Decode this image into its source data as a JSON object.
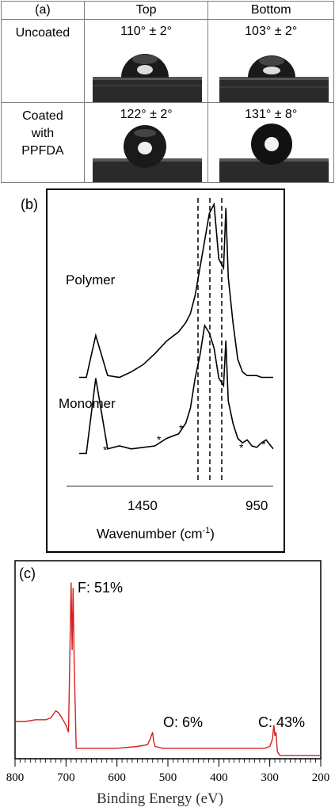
{
  "panel_a": {
    "label": "(a)",
    "col_top": "Top",
    "col_bottom": "Bottom",
    "row1_label": "Uncoated",
    "row2_label_lines": [
      "Coated",
      "with",
      "PPFDA"
    ],
    "uncoated_top": "110° ± 2°",
    "uncoated_bottom": "103° ± 2°",
    "coated_top": "122° ± 2°",
    "coated_bottom": "131° ± 8°"
  },
  "panel_b": {
    "label": "(b)",
    "polymer_label": "Polymer",
    "monomer_label": "Monomer",
    "tick_left": "1450",
    "tick_right": "950",
    "xlabel_main": "Wavenumber (cm",
    "xlabel_sup": "-1",
    "xlabel_end": ")",
    "asterisk": "*"
  },
  "panel_c": {
    "label": "(c)",
    "f_label": "F: 51%",
    "o_label": "O: 6%",
    "c_label": "C: 43%",
    "xlabel": "Binding Energy (eV)",
    "ticks": [
      "800",
      "700",
      "600",
      "500",
      "400",
      "300",
      "200"
    ]
  },
  "chart_data": [
    {
      "type": "line",
      "title": "",
      "xlabel": "Wavenumber (cm-1)",
      "ylabel": "",
      "x_ticks": [
        1450,
        950
      ],
      "series": [
        {
          "name": "Polymer",
          "x": [
            1770,
            1740,
            1700,
            1650,
            1600,
            1550,
            1500,
            1450,
            1400,
            1350,
            1320,
            1300,
            1280,
            1260,
            1240,
            1220,
            1200,
            1180,
            1160,
            1150,
            1140,
            1120,
            1100,
            1080,
            1060,
            1040,
            1020,
            1000,
            980,
            960,
            950
          ],
          "y": [
            0.05,
            0.05,
            0.28,
            0.06,
            0.05,
            0.08,
            0.12,
            0.18,
            0.25,
            0.3,
            0.35,
            0.4,
            0.5,
            0.65,
            0.8,
            0.95,
            1.0,
            0.7,
            0.65,
            0.98,
            0.6,
            0.35,
            0.15,
            0.08,
            0.06,
            0.06,
            0.06,
            0.05,
            0.05,
            0.05,
            0.05
          ]
        },
        {
          "name": "Monomer",
          "x": [
            1770,
            1740,
            1700,
            1650,
            1600,
            1550,
            1500,
            1450,
            1400,
            1350,
            1320,
            1300,
            1280,
            1260,
            1240,
            1220,
            1200,
            1180,
            1160,
            1150,
            1140,
            1120,
            1100,
            1080,
            1060,
            1040,
            1020,
            1000,
            980,
            960,
            950
          ],
          "y": [
            0.05,
            0.05,
            0.55,
            0.08,
            0.1,
            0.08,
            0.09,
            0.1,
            0.15,
            0.18,
            0.25,
            0.35,
            0.55,
            0.7,
            0.9,
            0.85,
            0.75,
            0.55,
            0.5,
            0.8,
            0.4,
            0.25,
            0.15,
            0.12,
            0.14,
            0.1,
            0.09,
            0.12,
            0.14,
            0.1,
            0.08
          ]
        }
      ]
    },
    {
      "type": "line",
      "title": "",
      "xlabel": "Binding Energy (eV)",
      "ylabel": "",
      "xlim": [
        800,
        200
      ],
      "grid": false,
      "series": [
        {
          "name": "",
          "x": [
            800,
            780,
            760,
            740,
            730,
            720,
            715,
            710,
            700,
            695,
            690,
            688,
            686,
            684,
            680,
            670,
            650,
            600,
            560,
            540,
            535,
            530,
            528,
            525,
            510,
            450,
            400,
            350,
            310,
            300,
            295,
            292,
            290,
            288,
            285,
            280,
            260,
            240,
            220,
            200
          ],
          "y": [
            0.2,
            0.2,
            0.21,
            0.21,
            0.22,
            0.26,
            0.25,
            0.23,
            0.18,
            0.14,
            0.98,
            0.6,
            0.95,
            0.55,
            0.05,
            0.05,
            0.05,
            0.05,
            0.06,
            0.07,
            0.1,
            0.14,
            0.09,
            0.06,
            0.05,
            0.05,
            0.05,
            0.05,
            0.05,
            0.06,
            0.1,
            0.18,
            0.12,
            0.14,
            0.03,
            0.01,
            0.01,
            0.01,
            0.01,
            0.01
          ]
        }
      ]
    }
  ]
}
